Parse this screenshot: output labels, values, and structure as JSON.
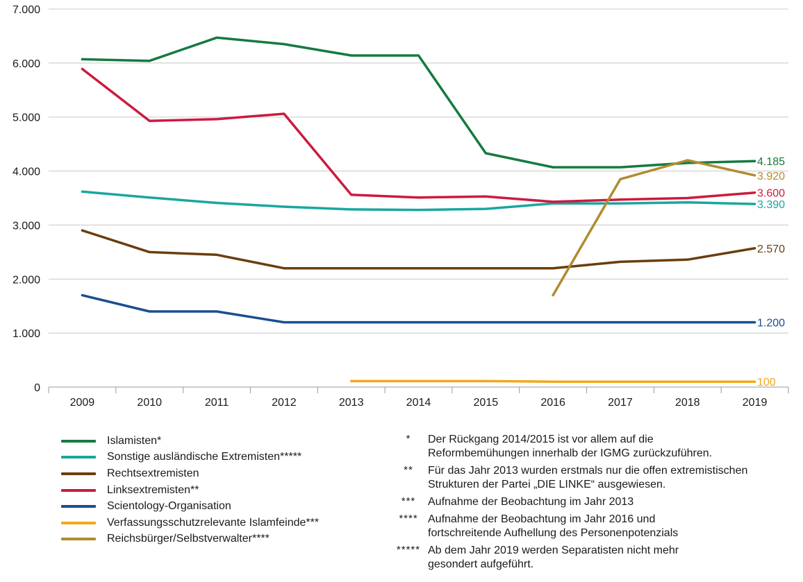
{
  "chart_data": {
    "type": "line",
    "title": "",
    "xlabel": "",
    "ylabel": "",
    "ylim": [
      0,
      7000
    ],
    "yticks": [
      0,
      1000,
      2000,
      3000,
      4000,
      5000,
      6000,
      7000
    ],
    "ytick_labels": [
      "0",
      "1.000",
      "2.000",
      "3.000",
      "4.000",
      "5.000",
      "6.000",
      "7.000"
    ],
    "categories": [
      "2009",
      "2010",
      "2011",
      "2012",
      "2013",
      "2014",
      "2015",
      "2016",
      "2017",
      "2018",
      "2019"
    ],
    "grid": "horizontal",
    "series": [
      {
        "name": "Islamisten*",
        "color": "#157a3f",
        "end_label": "4.185",
        "values": [
          6070,
          6040,
          6470,
          6350,
          6140,
          6140,
          4330,
          4070,
          4070,
          4150,
          4185
        ]
      },
      {
        "name": "Sonstige ausländische Extremisten*****",
        "color": "#1aa6a0",
        "end_label": "3.390",
        "values": [
          3620,
          3510,
          3410,
          3340,
          3290,
          3280,
          3300,
          3400,
          3400,
          3420,
          3390
        ]
      },
      {
        "name": "Rechtsextremisten",
        "color": "#6b3d0e",
        "end_label": "2.570",
        "values": [
          2900,
          2500,
          2450,
          2200,
          2200,
          2200,
          2200,
          2200,
          2320,
          2360,
          2570
        ]
      },
      {
        "name": "Linksextremisten**",
        "color": "#cc1a3f",
        "end_label": "3.600",
        "values": [
          5890,
          4930,
          4960,
          5060,
          3560,
          3510,
          3530,
          3430,
          3470,
          3500,
          3600
        ]
      },
      {
        "name": "Scientology-Organisation",
        "color": "#194f8f",
        "end_label": "1.200",
        "values": [
          1700,
          1400,
          1400,
          1200,
          1200,
          1200,
          1200,
          1200,
          1200,
          1200,
          1200
        ]
      },
      {
        "name": "Verfassungsschutzrelevante Islamfeinde***",
        "color": "#f0a81c",
        "end_label": "100",
        "values": [
          null,
          null,
          null,
          null,
          110,
          110,
          110,
          100,
          100,
          100,
          100
        ]
      },
      {
        "name": "Reichsbürger/Selbstverwalter****",
        "color": "#b08c2f",
        "end_label": "3.920",
        "values": [
          null,
          null,
          null,
          null,
          null,
          null,
          null,
          1700,
          3850,
          4200,
          3920
        ]
      }
    ]
  },
  "notes": [
    {
      "mark": "*",
      "text": "Der Rückgang 2014/2015 ist vor allem auf die\nReformbemühungen innerhalb der IGMG zurückzuführen."
    },
    {
      "mark": "**",
      "text": "Für das Jahr 2013 wurden erstmals nur die offen extremistischen\nStrukturen der Partei „DIE LINKE“ ausgewiesen."
    },
    {
      "mark": "***",
      "text": "Aufnahme der Beobachtung im Jahr 2013"
    },
    {
      "mark": "****",
      "text": "Aufnahme der Beobachtung im Jahr 2016 und\nfortschreitende Aufhellung des Personenpotenzials"
    },
    {
      "mark": "*****",
      "text": "Ab dem Jahr 2019 werden Separatisten nicht mehr\ngesondert aufgeführt."
    }
  ]
}
